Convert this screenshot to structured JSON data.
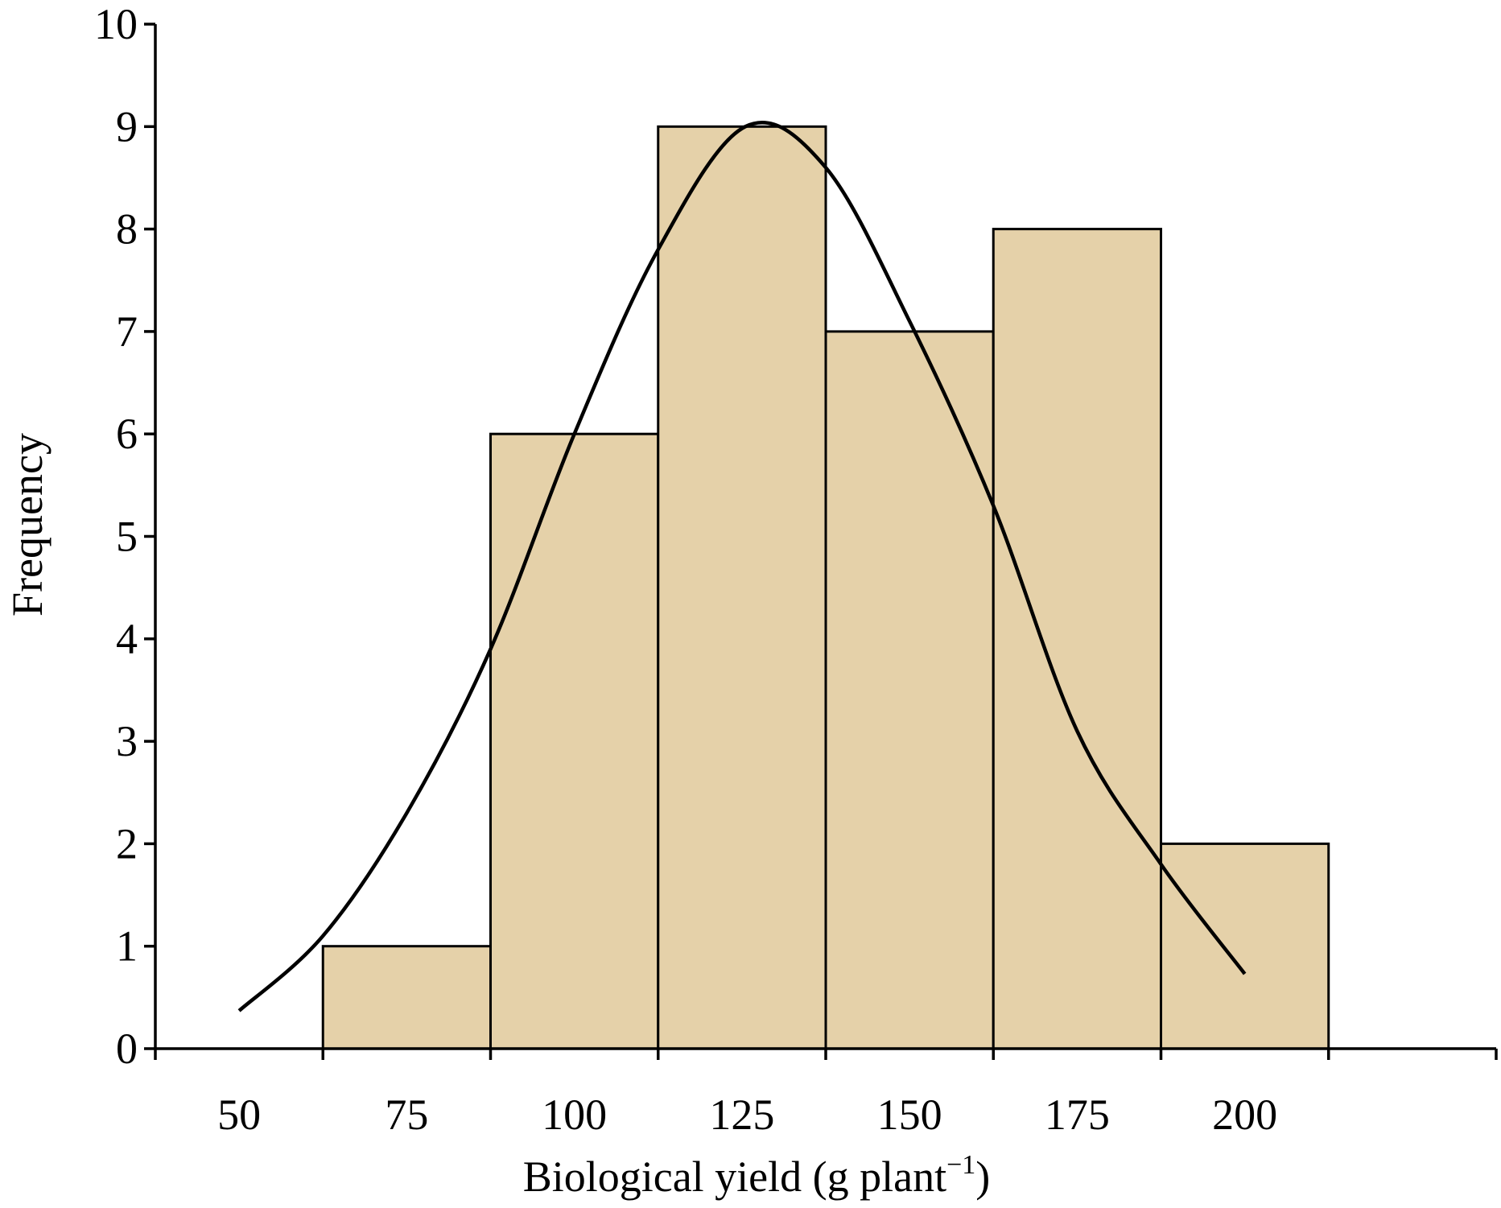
{
  "chart_data": {
    "type": "bar",
    "title": "",
    "xlabel": "Biological yield (g plant",
    "xlabel_superscript": "−1",
    "xlabel_close": ")",
    "ylabel": "Frequency",
    "categories": [
      "75",
      "100",
      "125",
      "150",
      "175",
      "200"
    ],
    "bins": [
      {
        "from": 62.5,
        "to": 87.5,
        "value": 1
      },
      {
        "from": 87.5,
        "to": 112.5,
        "value": 6
      },
      {
        "from": 112.5,
        "to": 137.5,
        "value": 9
      },
      {
        "from": 137.5,
        "to": 162.5,
        "value": 7
      },
      {
        "from": 162.5,
        "to": 187.5,
        "value": 8
      },
      {
        "from": 187.5,
        "to": 212.5,
        "value": 2
      }
    ],
    "values": [
      1,
      6,
      9,
      7,
      8,
      2
    ],
    "xlim": [
      37.5,
      237.5
    ],
    "ylim": [
      0,
      10
    ],
    "x_tick_labels": [
      "50",
      "75",
      "100",
      "125",
      "150",
      "175",
      "200"
    ],
    "x_tick_label_values": [
      50,
      75,
      100,
      125,
      150,
      175,
      200
    ],
    "x_tick_mark_values": [
      37.5,
      62.5,
      87.5,
      112.5,
      137.5,
      162.5,
      187.5,
      212.5,
      237.5
    ],
    "y_ticks": [
      0,
      1,
      2,
      3,
      4,
      5,
      6,
      7,
      8,
      9,
      10
    ],
    "curve": {
      "type": "line",
      "points": [
        [
          50,
          0.37
        ],
        [
          62.5,
          1.1
        ],
        [
          75,
          2.3
        ],
        [
          87.5,
          3.9
        ],
        [
          100,
          6.0
        ],
        [
          112.5,
          7.8
        ],
        [
          125.5,
          9.0
        ],
        [
          137.5,
          8.6
        ],
        [
          150,
          7.1
        ],
        [
          162.5,
          5.3
        ],
        [
          175,
          3.1
        ],
        [
          187.5,
          1.8
        ],
        [
          200,
          0.73
        ]
      ]
    },
    "bar_color": "#e5d1a9",
    "line_color": "#000000",
    "grid": false,
    "legend": "none"
  }
}
